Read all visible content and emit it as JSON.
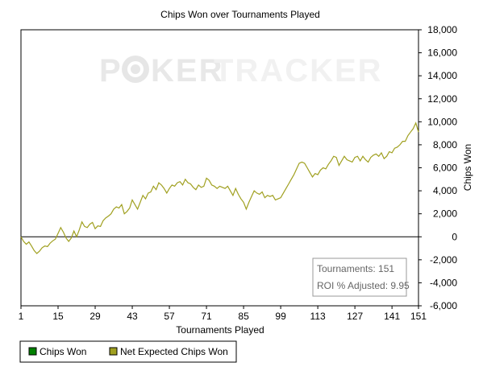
{
  "chart_data": {
    "type": "line",
    "title": "Chips Won over Tournaments Played",
    "xlabel": "Tournaments Played",
    "ylabel": "Chips Won",
    "x_ticks": [
      1,
      15,
      29,
      43,
      57,
      71,
      85,
      99,
      113,
      127,
      141,
      151
    ],
    "y_ticks": [
      -6000,
      -4000,
      -2000,
      0,
      2000,
      4000,
      6000,
      8000,
      10000,
      12000,
      14000,
      16000,
      18000
    ],
    "y_tick_labels": [
      "-6,000",
      "-4,000",
      "-2,000",
      "0",
      "2,000",
      "4,000",
      "6,000",
      "8,000",
      "10,000",
      "12,000",
      "14,000",
      "16,000",
      "18,000"
    ],
    "xlim": [
      1,
      151
    ],
    "ylim": [
      -6000,
      18000
    ],
    "grid": false,
    "legend_position": "bottom",
    "series": [
      {
        "name": "Chips Won",
        "color": "#008000",
        "points": [
          [
            1,
            0
          ],
          [
            151,
            9000
          ]
        ]
      },
      {
        "name": "Net Expected Chips Won",
        "color": "#a0a020",
        "points": [
          [
            1,
            0
          ],
          [
            2,
            -400
          ],
          [
            3,
            -650
          ],
          [
            4,
            -450
          ],
          [
            5,
            -800
          ],
          [
            6,
            -1200
          ],
          [
            7,
            -1450
          ],
          [
            8,
            -1250
          ],
          [
            9,
            -950
          ],
          [
            10,
            -800
          ],
          [
            11,
            -850
          ],
          [
            12,
            -550
          ],
          [
            13,
            -350
          ],
          [
            14,
            -200
          ],
          [
            15,
            300
          ],
          [
            16,
            800
          ],
          [
            17,
            400
          ],
          [
            18,
            -100
          ],
          [
            19,
            -400
          ],
          [
            20,
            -100
          ],
          [
            21,
            500
          ],
          [
            22,
            0
          ],
          [
            23,
            600
          ],
          [
            24,
            1300
          ],
          [
            25,
            900
          ],
          [
            26,
            800
          ],
          [
            27,
            1100
          ],
          [
            28,
            1250
          ],
          [
            29,
            700
          ],
          [
            30,
            950
          ],
          [
            31,
            900
          ],
          [
            32,
            1400
          ],
          [
            33,
            1650
          ],
          [
            34,
            1800
          ],
          [
            35,
            2000
          ],
          [
            36,
            2400
          ],
          [
            37,
            2600
          ],
          [
            38,
            2500
          ],
          [
            39,
            2800
          ],
          [
            40,
            2000
          ],
          [
            41,
            2200
          ],
          [
            42,
            2500
          ],
          [
            43,
            3200
          ],
          [
            44,
            2800
          ],
          [
            45,
            2400
          ],
          [
            46,
            3000
          ],
          [
            47,
            3600
          ],
          [
            48,
            3300
          ],
          [
            49,
            3800
          ],
          [
            50,
            3900
          ],
          [
            51,
            4400
          ],
          [
            52,
            4100
          ],
          [
            53,
            4700
          ],
          [
            54,
            4500
          ],
          [
            55,
            4200
          ],
          [
            56,
            3800
          ],
          [
            57,
            4200
          ],
          [
            58,
            4500
          ],
          [
            59,
            4400
          ],
          [
            60,
            4700
          ],
          [
            61,
            4800
          ],
          [
            62,
            4500
          ],
          [
            63,
            5000
          ],
          [
            64,
            4700
          ],
          [
            65,
            4600
          ],
          [
            66,
            4300
          ],
          [
            67,
            4100
          ],
          [
            68,
            4500
          ],
          [
            69,
            4300
          ],
          [
            70,
            4400
          ],
          [
            71,
            5100
          ],
          [
            72,
            4900
          ],
          [
            73,
            4500
          ],
          [
            74,
            4400
          ],
          [
            75,
            4200
          ],
          [
            76,
            4400
          ],
          [
            77,
            4300
          ],
          [
            78,
            4200
          ],
          [
            79,
            4400
          ],
          [
            80,
            4000
          ],
          [
            81,
            3600
          ],
          [
            82,
            4200
          ],
          [
            83,
            3700
          ],
          [
            84,
            3300
          ],
          [
            85,
            3000
          ],
          [
            86,
            2400
          ],
          [
            87,
            3000
          ],
          [
            88,
            3500
          ],
          [
            89,
            4000
          ],
          [
            90,
            3800
          ],
          [
            91,
            3700
          ],
          [
            92,
            3900
          ],
          [
            93,
            3400
          ],
          [
            94,
            3600
          ],
          [
            95,
            3500
          ],
          [
            96,
            3600
          ],
          [
            97,
            3200
          ],
          [
            98,
            3300
          ],
          [
            99,
            3400
          ],
          [
            100,
            3800
          ],
          [
            101,
            4200
          ],
          [
            102,
            4600
          ],
          [
            103,
            5000
          ],
          [
            104,
            5400
          ],
          [
            105,
            5900
          ],
          [
            106,
            6400
          ],
          [
            107,
            6500
          ],
          [
            108,
            6400
          ],
          [
            109,
            6000
          ],
          [
            110,
            5600
          ],
          [
            111,
            5200
          ],
          [
            112,
            5500
          ],
          [
            113,
            5400
          ],
          [
            114,
            5800
          ],
          [
            115,
            6000
          ],
          [
            116,
            5900
          ],
          [
            117,
            6300
          ],
          [
            118,
            6600
          ],
          [
            119,
            7000
          ],
          [
            120,
            6900
          ],
          [
            121,
            6200
          ],
          [
            122,
            6600
          ],
          [
            123,
            7000
          ],
          [
            124,
            6700
          ],
          [
            125,
            6600
          ],
          [
            126,
            6500
          ],
          [
            127,
            6900
          ],
          [
            128,
            7000
          ],
          [
            129,
            6600
          ],
          [
            130,
            7000
          ],
          [
            131,
            6700
          ],
          [
            132,
            6500
          ],
          [
            133,
            6900
          ],
          [
            134,
            7100
          ],
          [
            135,
            7200
          ],
          [
            136,
            7000
          ],
          [
            137,
            7300
          ],
          [
            138,
            6800
          ],
          [
            139,
            7000
          ],
          [
            140,
            7400
          ],
          [
            141,
            7300
          ],
          [
            142,
            7700
          ],
          [
            143,
            7800
          ],
          [
            144,
            8000
          ],
          [
            145,
            8300
          ],
          [
            146,
            8300
          ],
          [
            147,
            8800
          ],
          [
            148,
            9100
          ],
          [
            149,
            9400
          ],
          [
            150,
            9900
          ],
          [
            151,
            9100
          ]
        ]
      }
    ]
  },
  "watermark": {
    "text_left": "P",
    "text_mid": "KER",
    "text_right": "TRACKER"
  },
  "infobox": {
    "tournaments_label": "Tournaments: 151",
    "roi_label": "ROI % Adjusted: 9.95"
  },
  "legend": {
    "items": [
      {
        "label": "Chips Won",
        "color": "#008000"
      },
      {
        "label": "Net Expected Chips Won",
        "color": "#a0a020"
      }
    ]
  }
}
